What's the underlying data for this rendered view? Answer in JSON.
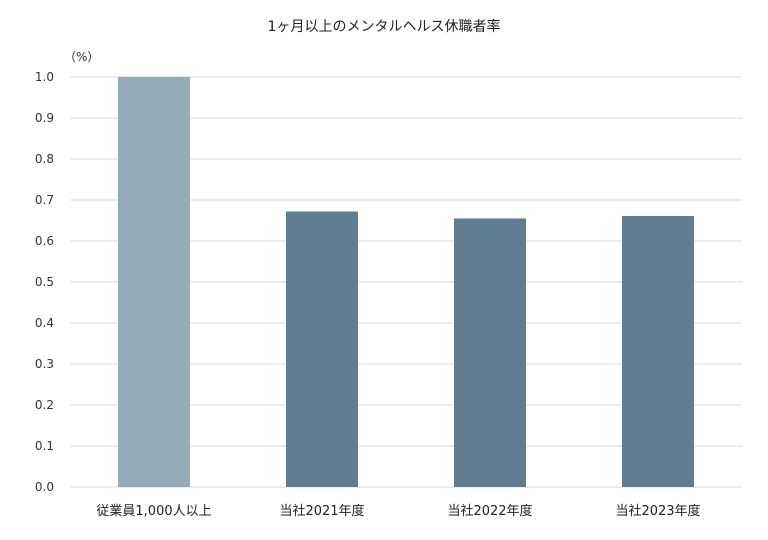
{
  "chart_data": {
    "type": "bar",
    "title": "1ヶ月以上のメンタルヘルス休職者率",
    "unit_label": "（%）",
    "categories": [
      "従業員1,000人以上",
      "当社2021年度",
      "当社2022年度",
      "当社2023年度"
    ],
    "values": [
      1.0,
      0.672,
      0.655,
      0.661
    ],
    "ylim": [
      0,
      1.0
    ],
    "yticks": [
      "0.0",
      "0.1",
      "0.2",
      "0.3",
      "0.4",
      "0.5",
      "0.6",
      "0.7",
      "0.8",
      "0.9",
      "1.0"
    ],
    "grid": true,
    "bar_colors": [
      "#96abb8",
      "#5f7c91",
      "#5f7c91",
      "#5f7c91"
    ],
    "grid_color": "#d9d9d9"
  }
}
